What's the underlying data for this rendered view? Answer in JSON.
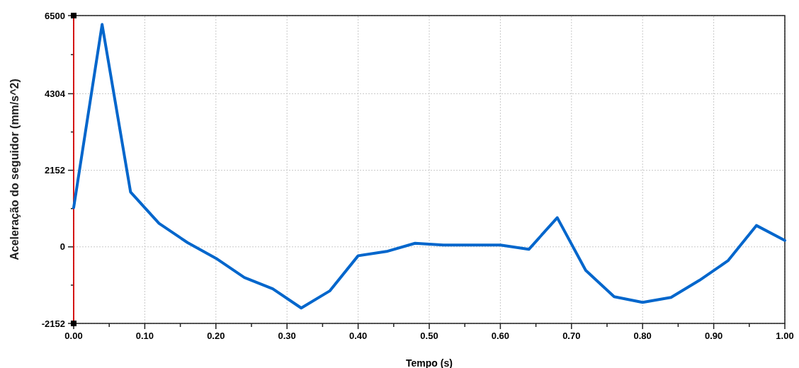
{
  "chart_data": {
    "type": "line",
    "xlabel": "Tempo (s)",
    "ylabel": "Aceleração do seguidor  (mm/s^2)",
    "x": [
      0,
      0.04,
      0.08,
      0.12,
      0.16,
      0.2,
      0.24,
      0.28,
      0.32,
      0.36,
      0.4,
      0.44,
      0.48,
      0.52,
      0.56,
      0.6,
      0.64,
      0.68,
      0.72,
      0.76,
      0.8,
      0.84,
      0.88,
      0.92,
      0.96,
      1.0
    ],
    "series": [
      {
        "color": "#0066cc",
        "values": [
          1100,
          6250,
          1540,
          660,
          120,
          -320,
          -860,
          -1180,
          -1720,
          -1240,
          -250,
          -130,
          100,
          50,
          50,
          50,
          -70,
          820,
          -660,
          -1400,
          -1560,
          -1420,
          -940,
          -390,
          600,
          180
        ]
      }
    ],
    "xlim": [
      0,
      1
    ],
    "xticks": [
      {
        "value": 0,
        "label": "0.00"
      },
      {
        "value": 0.05,
        "label": null
      },
      {
        "value": 0.1,
        "label": "0.10"
      },
      {
        "value": 0.15,
        "label": null
      },
      {
        "value": 0.2,
        "label": "0.20"
      },
      {
        "value": 0.25,
        "label": null
      },
      {
        "value": 0.3,
        "label": "0.30"
      },
      {
        "value": 0.35,
        "label": null
      },
      {
        "value": 0.4,
        "label": "0.40"
      },
      {
        "value": 0.45,
        "label": null
      },
      {
        "value": 0.5,
        "label": "0.50"
      },
      {
        "value": 0.55,
        "label": null
      },
      {
        "value": 0.6,
        "label": "0.60"
      },
      {
        "value": 0.65,
        "label": null
      },
      {
        "value": 0.7,
        "label": "0.70"
      },
      {
        "value": 0.75,
        "label": null
      },
      {
        "value": 0.8,
        "label": "0.80"
      },
      {
        "value": 0.85,
        "label": null
      },
      {
        "value": 0.9,
        "label": "0.90"
      },
      {
        "value": 0.95,
        "label": null
      },
      {
        "value": 1.0,
        "label": "1.00"
      }
    ],
    "ylim": [
      -2152,
      6500
    ],
    "yticks": [
      -2152,
      {
        "value": -1076,
        "label": null
      },
      0,
      {
        "value": 1076,
        "label": null
      },
      2152,
      {
        "value": 3228,
        "label": null
      },
      4304,
      {
        "value": 5402,
        "label": null
      },
      6500
    ],
    "grid": true,
    "line_style": "solid",
    "marker": "none"
  }
}
